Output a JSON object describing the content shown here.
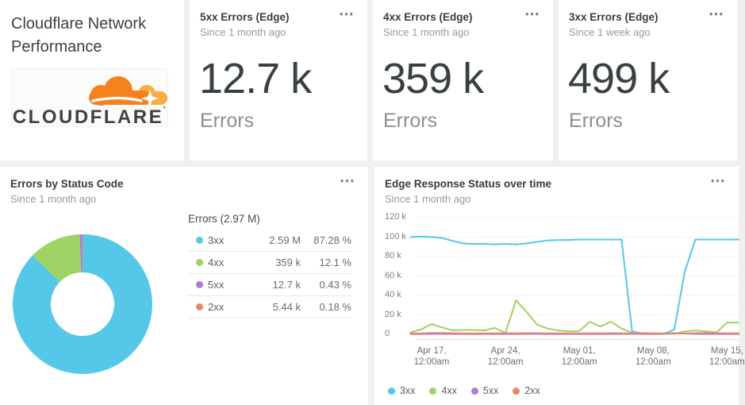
{
  "icons": {
    "card_menu": "⋯"
  },
  "theme": {
    "background": "#f0f0f0",
    "card_background": "#ffffff",
    "accent_orange": "#F6821F",
    "accent_orange_light": "#FBAD41",
    "big_number_color": "#38413f"
  },
  "title_card": {
    "title": "Cloudflare Network Performance",
    "logo_text": "CLOUDFLARE",
    "logo_mark": "'"
  },
  "stat_cards": [
    {
      "title": "5xx Errors (Edge)",
      "subtitle": "Since 1 month ago",
      "value": "12.7 k",
      "label": "Errors"
    },
    {
      "title": "4xx Errors (Edge)",
      "subtitle": "Since 1 month ago",
      "value": "359 k",
      "label": "Errors"
    },
    {
      "title": "3xx Errors (Edge)",
      "subtitle": "Since 1 week ago",
      "value": "499 k",
      "label": "Errors"
    }
  ],
  "donut_card": {
    "title": "Errors by Status Code",
    "subtitle": "Since 1 month ago",
    "legend_title": "Errors (2.97 M)"
  },
  "chart_card": {
    "title": "Edge Response Status over time",
    "subtitle": "Since 1 month ago"
  },
  "chart_data": [
    {
      "type": "pie",
      "donut": true,
      "title": "Errors by Status Code",
      "total_label": "Errors (2.97 M)",
      "slices": [
        {
          "name": "3xx",
          "value": "2.59 M",
          "pct": 87.28,
          "pct_label": "87.28 %",
          "color": "#55C8E9"
        },
        {
          "name": "4xx",
          "value": "359 k",
          "pct": 12.1,
          "pct_label": "12.1 %",
          "color": "#9ED366"
        },
        {
          "name": "5xx",
          "value": "12.7 k",
          "pct": 0.43,
          "pct_label": "0.43 %",
          "color": "#A87FD6"
        },
        {
          "name": "2xx",
          "value": "5.44 k",
          "pct": 0.18,
          "pct_label": "0.18 %",
          "color": "#EF8268"
        }
      ]
    },
    {
      "type": "line",
      "title": "Edge Response Status over time",
      "grid": "horizontal-dotted",
      "legend_position": "bottom",
      "ylim_k": [
        0,
        120
      ],
      "y_ticks": [
        {
          "label": "120 k",
          "k": 120
        },
        {
          "label": "100 k",
          "k": 100
        },
        {
          "label": "80 k",
          "k": 80
        },
        {
          "label": "60 k",
          "k": 60
        },
        {
          "label": "40 k",
          "k": 40
        },
        {
          "label": "20 k",
          "k": 20
        },
        {
          "label": "0",
          "k": 0
        }
      ],
      "x_ticks": [
        {
          "day": 2,
          "line1": "Apr 17,",
          "line2": "12:00am"
        },
        {
          "day": 9,
          "line1": "Apr 24,",
          "line2": "12:00am"
        },
        {
          "day": 16,
          "line1": "May 01,",
          "line2": "12:00am"
        },
        {
          "day": 23,
          "line1": "May 08,",
          "line2": "12:00am"
        },
        {
          "day": 30,
          "line1": "May 15,",
          "line2": "12:00am"
        }
      ],
      "series": [
        {
          "name": "3xx",
          "color": "#55C8E9",
          "values_k": [
            100,
            100.5,
            100,
            99,
            96,
            93.5,
            93,
            93,
            92.5,
            93,
            92.5,
            93.5,
            95,
            96.5,
            97,
            97,
            97.5,
            97.5,
            97.5,
            97.5,
            97.5,
            3,
            0.8,
            0.5,
            0.3,
            5,
            65,
            97.5,
            97.5,
            97.5,
            97.5
          ]
        },
        {
          "name": "4xx",
          "color": "#9ED366",
          "values_k": [
            2,
            5,
            10.5,
            7,
            4,
            4.5,
            4.5,
            4,
            6.5,
            1.5,
            35,
            23,
            10,
            6,
            4,
            3,
            3.5,
            13,
            8,
            13,
            6,
            1.5,
            0.5,
            0.3,
            0.3,
            0.5,
            3,
            4,
            3,
            2,
            12
          ]
        },
        {
          "name": "5xx",
          "color": "#A87FD6",
          "values_k": [
            0.3,
            0.3,
            0.4,
            0.4,
            0.3,
            0.3,
            0.3,
            0.3,
            0.3,
            0.3,
            0.3,
            0.4,
            0.4,
            0.3,
            0.3,
            0.3,
            0.3,
            0.3,
            0.3,
            0.3,
            0.4,
            0.4,
            0.3,
            0.3,
            1.0,
            1.2,
            0.8,
            0.4,
            0.3,
            0.3,
            0.3
          ]
        },
        {
          "name": "2xx",
          "color": "#EF8268",
          "values_k": [
            0.8,
            1,
            1.5,
            1.5,
            1.2,
            1,
            1,
            1,
            1,
            1.2,
            1,
            1.2,
            1.2,
            1,
            1,
            1,
            1,
            1,
            1,
            1.2,
            1,
            1,
            1.2,
            1,
            0.8,
            0.8,
            1,
            1.2,
            1.5,
            1.2,
            1
          ]
        }
      ]
    }
  ]
}
